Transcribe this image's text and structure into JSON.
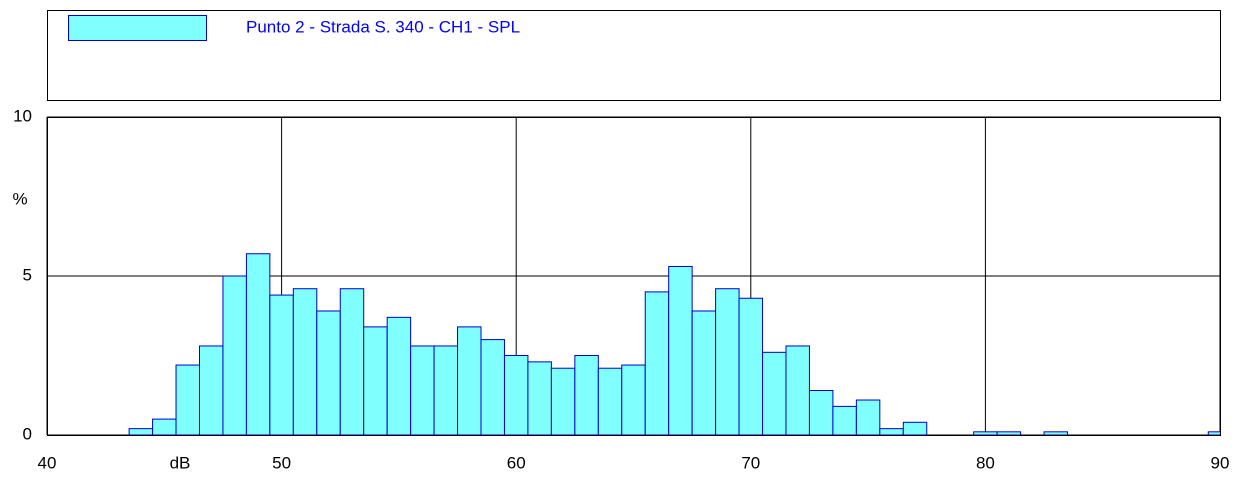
{
  "chart_data": {
    "type": "histogram",
    "legend": "Punto 2 - Strada S. 340 - CH1 - SPL",
    "xlabel": "dB",
    "ylabel": "%",
    "bins": [
      43.5,
      44.5,
      45.5,
      46.5,
      47.5,
      48.5,
      49.5,
      50.5,
      51.5,
      52.5,
      53.5,
      54.5,
      55.5,
      56.5,
      57.5,
      58.5,
      59.5,
      60.5,
      61.5,
      62.5,
      63.5,
      64.5,
      65.5,
      66.5,
      67.5,
      68.5,
      69.5,
      70.5,
      71.5,
      72.5,
      73.5,
      74.5,
      75.5,
      76.5,
      77.5,
      78.5,
      79.5,
      80.5,
      81.5,
      82.5,
      83.5,
      84.5,
      85.5,
      86.5,
      87.5,
      88.5,
      89.5,
      90.5
    ],
    "values": [
      0.2,
      0.5,
      2.2,
      2.8,
      5.0,
      5.7,
      4.4,
      4.6,
      3.9,
      4.6,
      3.4,
      3.7,
      2.8,
      2.8,
      3.4,
      3.0,
      2.5,
      2.3,
      2.1,
      2.5,
      2.1,
      2.2,
      4.5,
      5.3,
      3.9,
      4.6,
      4.3,
      2.6,
      2.8,
      1.4,
      0.9,
      1.1,
      0.2,
      0.4,
      0,
      0,
      0.1,
      0.1,
      0,
      0.1,
      0,
      0,
      0,
      0,
      0,
      0,
      0.1
    ],
    "color": "#80ffff",
    "edge_color": "#0000cc",
    "text_color": "#0000ff",
    "xlim": [
      40,
      90
    ],
    "xticks": [
      40,
      50,
      60,
      70,
      80,
      90
    ],
    "ylim": [
      0,
      10
    ],
    "yticks": [
      0,
      5,
      10
    ],
    "grid": true
  }
}
